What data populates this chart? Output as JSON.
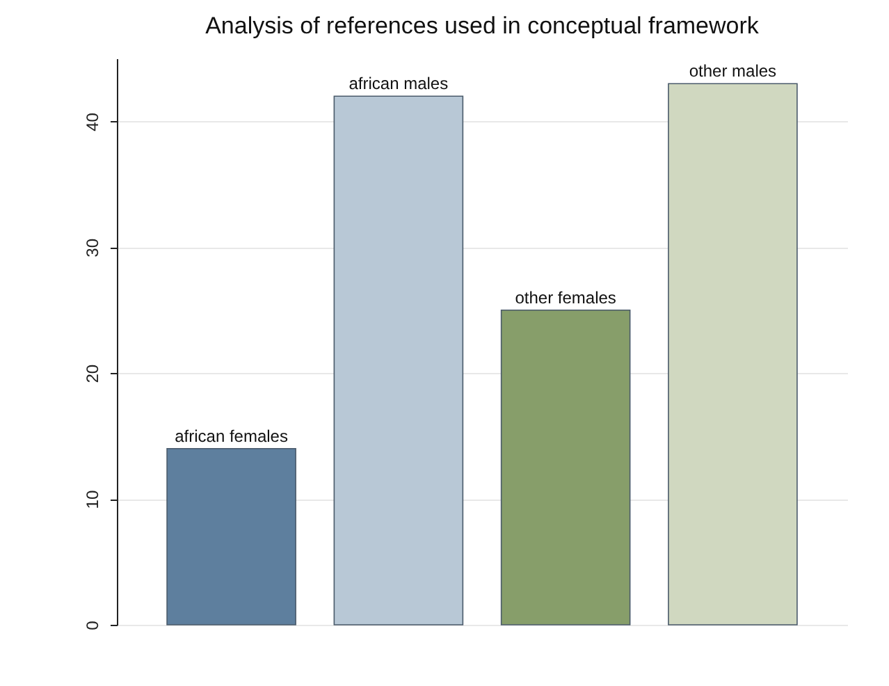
{
  "chart_data": {
    "type": "bar",
    "title": "Analysis of references used in conceptual framework",
    "categories": [
      "african females",
      "african males",
      "other females",
      "other males"
    ],
    "values": [
      14,
      42,
      25,
      43
    ],
    "colors": [
      "#5e7f9e",
      "#b8c8d6",
      "#879e6a",
      "#d0d8c0"
    ],
    "ylim": [
      0,
      45
    ],
    "yticks": [
      0,
      10,
      20,
      30,
      40
    ],
    "grid": "y",
    "tick_labels": "y"
  }
}
